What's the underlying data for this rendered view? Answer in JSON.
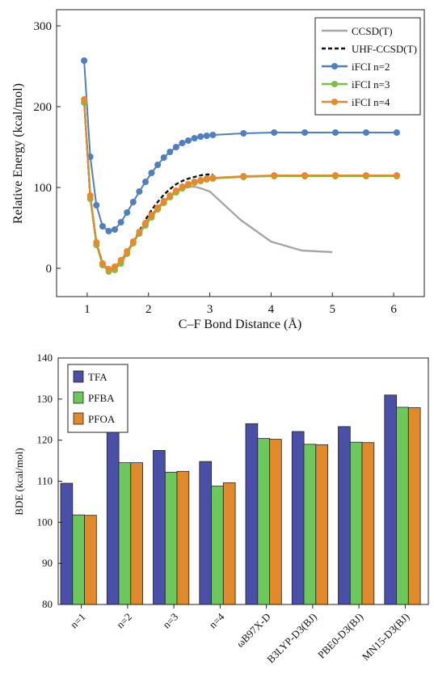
{
  "chart_data": [
    {
      "type": "line",
      "xlabel": "C–F Bond Distance (Å)",
      "ylabel": "Relative Energy (kcal/mol)",
      "xlim": [
        0.5,
        6.5
      ],
      "ylim": [
        -35,
        320
      ],
      "xticks": [
        "1",
        "2",
        "3",
        "4",
        "5",
        "6"
      ],
      "yticks": [
        "0",
        "100",
        "200",
        "300"
      ],
      "grid": false,
      "legend_position": "top-right",
      "series": [
        {
          "name": "CCSD(T)",
          "color": "#a6a6a6",
          "style": "solid",
          "markers": false,
          "points": [
            [
              0.95,
              208
            ],
            [
              1.05,
              88
            ],
            [
              1.15,
              31
            ],
            [
              1.25,
              6
            ],
            [
              1.35,
              -3
            ],
            [
              1.45,
              0
            ],
            [
              1.55,
              8
            ],
            [
              1.65,
              20
            ],
            [
              1.75,
              32
            ],
            [
              1.85,
              44
            ],
            [
              1.95,
              56
            ],
            [
              2.05,
              66
            ],
            [
              2.15,
              75
            ],
            [
              2.25,
              83
            ],
            [
              2.35,
              89
            ],
            [
              2.45,
              94
            ],
            [
              2.55,
              98
            ],
            [
              2.65,
              101
            ],
            [
              2.75,
              101
            ],
            [
              2.85,
              99
            ],
            [
              3.0,
              95
            ],
            [
              3.5,
              60
            ],
            [
              4.0,
              33
            ],
            [
              4.5,
              22
            ],
            [
              5.0,
              20
            ]
          ]
        },
        {
          "name": "UHF-CCSD(T)",
          "color": "#111111",
          "style": "dashed",
          "markers": false,
          "points": [
            [
              0.95,
              208
            ],
            [
              1.05,
              88
            ],
            [
              1.15,
              31
            ],
            [
              1.25,
              6
            ],
            [
              1.35,
              -3
            ],
            [
              1.45,
              0
            ],
            [
              1.55,
              8
            ],
            [
              1.65,
              20
            ],
            [
              1.75,
              33
            ],
            [
              1.85,
              46
            ],
            [
              1.95,
              60
            ],
            [
              2.05,
              72
            ],
            [
              2.15,
              82
            ],
            [
              2.25,
              91
            ],
            [
              2.35,
              98
            ],
            [
              2.45,
              104
            ],
            [
              2.55,
              108
            ],
            [
              2.65,
              111
            ],
            [
              2.75,
              113
            ],
            [
              2.85,
              115
            ],
            [
              2.95,
              116
            ],
            [
              3.05,
              116
            ]
          ]
        },
        {
          "name": "iFCI n=2",
          "color": "#4f7fbf",
          "style": "solid",
          "markers": true,
          "points": [
            [
              0.95,
              257
            ],
            [
              1.05,
              138
            ],
            [
              1.15,
              78
            ],
            [
              1.25,
              52
            ],
            [
              1.35,
              46
            ],
            [
              1.45,
              48
            ],
            [
              1.55,
              57
            ],
            [
              1.65,
              69
            ],
            [
              1.75,
              82
            ],
            [
              1.85,
              95
            ],
            [
              1.95,
              107
            ],
            [
              2.05,
              118
            ],
            [
              2.15,
              128
            ],
            [
              2.25,
              137
            ],
            [
              2.35,
              144
            ],
            [
              2.45,
              150
            ],
            [
              2.55,
              155
            ],
            [
              2.65,
              158
            ],
            [
              2.75,
              161
            ],
            [
              2.85,
              163
            ],
            [
              2.95,
              164
            ],
            [
              3.05,
              165
            ],
            [
              3.55,
              167
            ],
            [
              4.05,
              168
            ],
            [
              4.55,
              168
            ],
            [
              5.05,
              168
            ],
            [
              5.55,
              168
            ],
            [
              6.05,
              168
            ]
          ]
        },
        {
          "name": "iFCI n=3",
          "color": "#7cbd4e",
          "style": "solid",
          "markers": true,
          "points": [
            [
              0.95,
              205
            ],
            [
              1.05,
              86
            ],
            [
              1.15,
              29
            ],
            [
              1.25,
              4
            ],
            [
              1.35,
              -4
            ],
            [
              1.45,
              -2
            ],
            [
              1.55,
              6
            ],
            [
              1.65,
              18
            ],
            [
              1.75,
              31
            ],
            [
              1.85,
              43
            ],
            [
              1.95,
              53
            ],
            [
              2.05,
              63
            ],
            [
              2.15,
              73
            ],
            [
              2.25,
              81
            ],
            [
              2.35,
              88
            ],
            [
              2.45,
              94
            ],
            [
              2.55,
              99
            ],
            [
              2.65,
              103
            ],
            [
              2.75,
              106
            ],
            [
              2.85,
              108
            ],
            [
              2.95,
              110
            ],
            [
              3.05,
              111
            ],
            [
              3.55,
              113
            ],
            [
              4.05,
              114
            ],
            [
              4.55,
              114
            ],
            [
              5.05,
              114
            ],
            [
              5.55,
              114
            ],
            [
              6.05,
              114
            ]
          ]
        },
        {
          "name": "iFCI n=4",
          "color": "#e8892a",
          "style": "solid",
          "markers": true,
          "points": [
            [
              0.95,
              209
            ],
            [
              1.05,
              90
            ],
            [
              1.15,
              32
            ],
            [
              1.25,
              6
            ],
            [
              1.35,
              -1
            ],
            [
              1.45,
              2
            ],
            [
              1.55,
              10
            ],
            [
              1.65,
              21
            ],
            [
              1.75,
              33
            ],
            [
              1.85,
              45
            ],
            [
              1.95,
              56
            ],
            [
              2.05,
              66
            ],
            [
              2.15,
              75
            ],
            [
              2.25,
              83
            ],
            [
              2.35,
              90
            ],
            [
              2.45,
              96
            ],
            [
              2.55,
              101
            ],
            [
              2.65,
              104
            ],
            [
              2.75,
              107
            ],
            [
              2.85,
              109
            ],
            [
              2.95,
              111
            ],
            [
              3.05,
              112
            ],
            [
              3.55,
              114
            ],
            [
              4.05,
              115
            ],
            [
              4.55,
              115
            ],
            [
              5.05,
              115
            ],
            [
              5.55,
              115
            ],
            [
              6.05,
              115
            ]
          ]
        }
      ]
    },
    {
      "type": "bar",
      "ylabel": "BDE (kcal/mol)",
      "ylim": [
        80,
        140
      ],
      "yticks": [
        "80",
        "90",
        "100",
        "110",
        "120",
        "130",
        "140"
      ],
      "grid": false,
      "legend_position": "top-left",
      "categories": [
        "n=1",
        "n=2",
        "n=3",
        "n=4",
        "ωB97X-D",
        "B3LYP-D3(BJ)",
        "PBE0-D3(BJ)",
        "MN15-D3(BJ)"
      ],
      "series": [
        {
          "name": "TFA",
          "color": "#4a4fa8",
          "values": [
            109.5,
            122.2,
            117.5,
            114.8,
            124.0,
            122.1,
            123.3,
            131.0
          ]
        },
        {
          "name": "PFBA",
          "color": "#6cc85a",
          "values": [
            101.8,
            114.5,
            112.2,
            108.8,
            120.4,
            119.0,
            119.5,
            128.0
          ]
        },
        {
          "name": "PFOA",
          "color": "#e08a2c",
          "values": [
            101.7,
            114.5,
            112.4,
            109.6,
            120.2,
            118.9,
            119.4,
            127.9
          ]
        }
      ]
    }
  ]
}
